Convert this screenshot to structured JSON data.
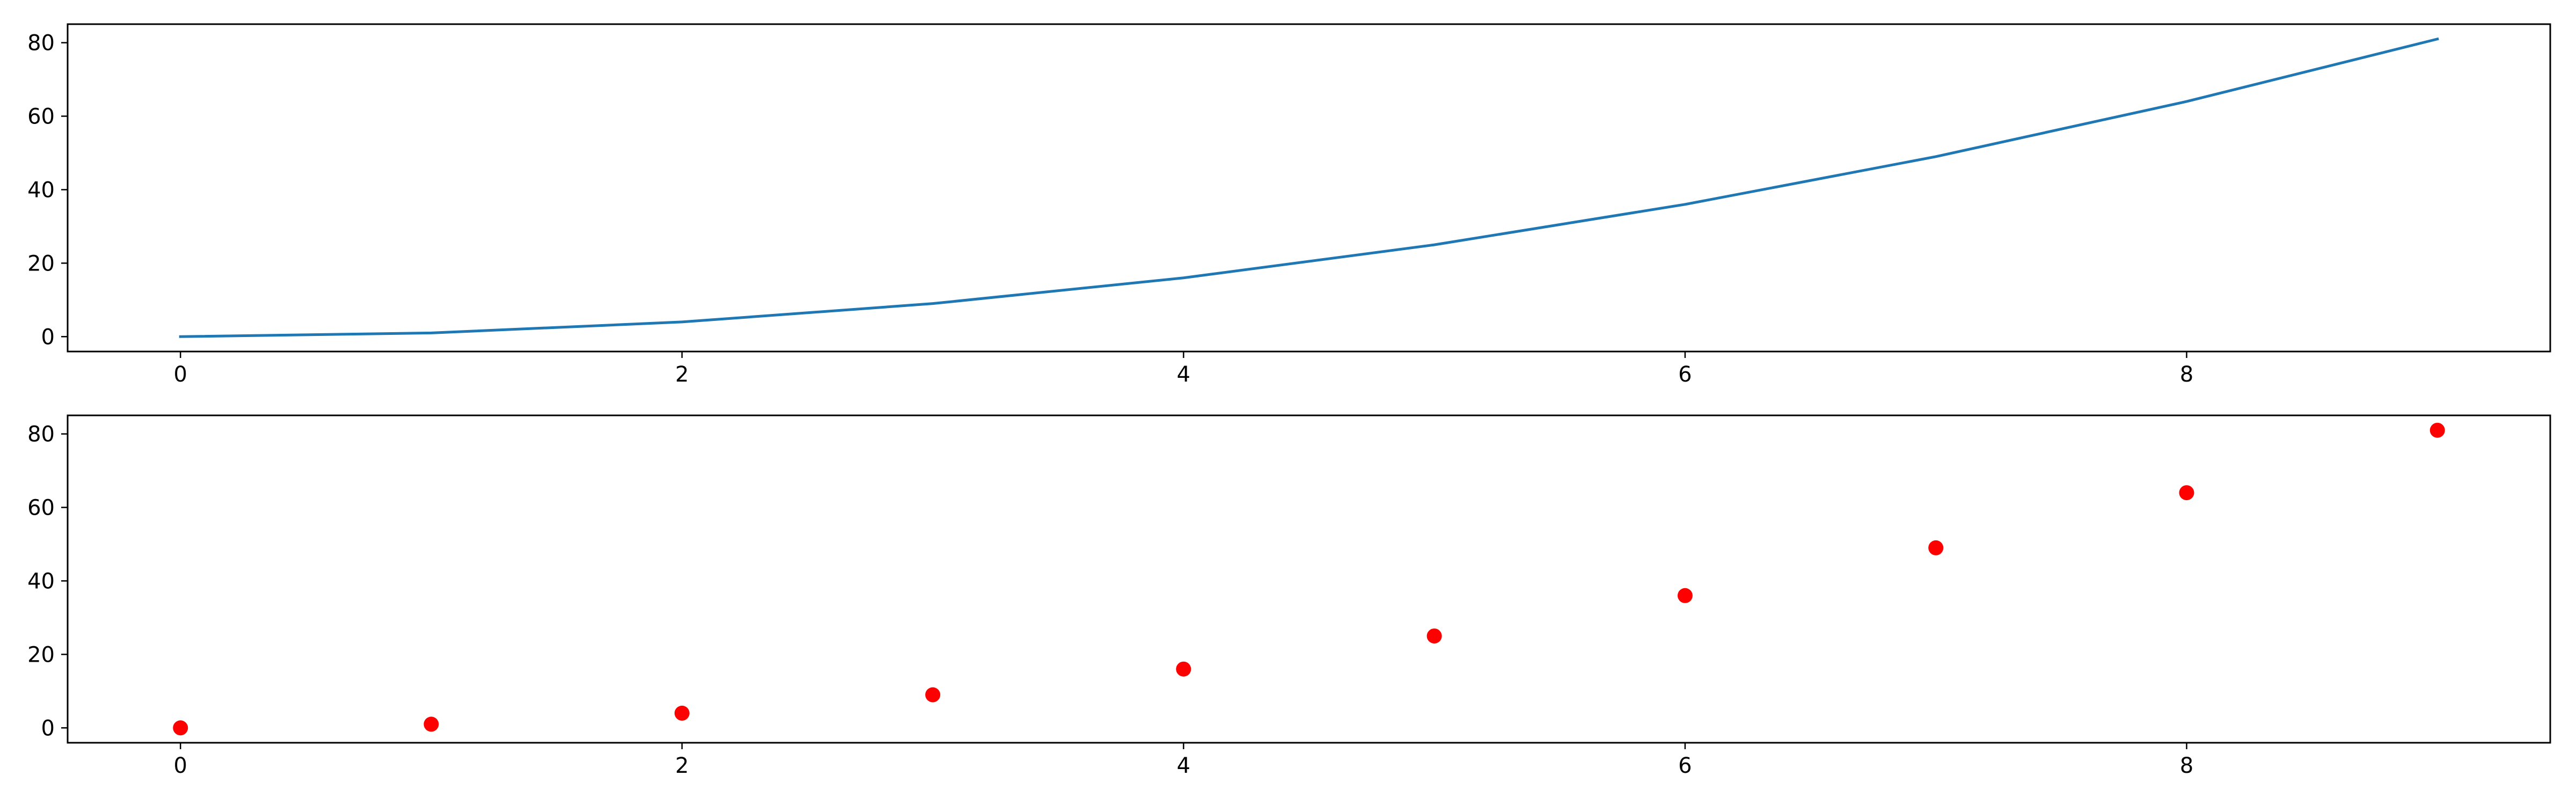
{
  "chart_data": [
    {
      "type": "line",
      "x": [
        0,
        1,
        2,
        3,
        4,
        5,
        6,
        7,
        8,
        9
      ],
      "series": [
        {
          "values": [
            0,
            1,
            4,
            9,
            16,
            25,
            36,
            49,
            64,
            81
          ],
          "color": "#1f77b4"
        }
      ],
      "title": "",
      "xlabel": "",
      "ylabel": "",
      "xlim": [
        -0.45,
        9.45
      ],
      "ylim": [
        -4.05,
        85.05
      ],
      "xticks": [
        0,
        2,
        4,
        6,
        8
      ],
      "yticks": [
        0,
        20,
        40,
        60,
        80
      ],
      "grid": false
    },
    {
      "type": "scatter",
      "x": [
        0,
        1,
        2,
        3,
        4,
        5,
        6,
        7,
        8,
        9
      ],
      "series": [
        {
          "values": [
            0,
            1,
            4,
            9,
            16,
            25,
            36,
            49,
            64,
            81
          ],
          "color": "#ff0000"
        }
      ],
      "title": "",
      "xlabel": "",
      "ylabel": "",
      "xlim": [
        -0.45,
        9.45
      ],
      "ylim": [
        -4.05,
        85.05
      ],
      "xticks": [
        0,
        2,
        4,
        6,
        8
      ],
      "yticks": [
        0,
        20,
        40,
        60,
        80
      ],
      "grid": false
    }
  ]
}
